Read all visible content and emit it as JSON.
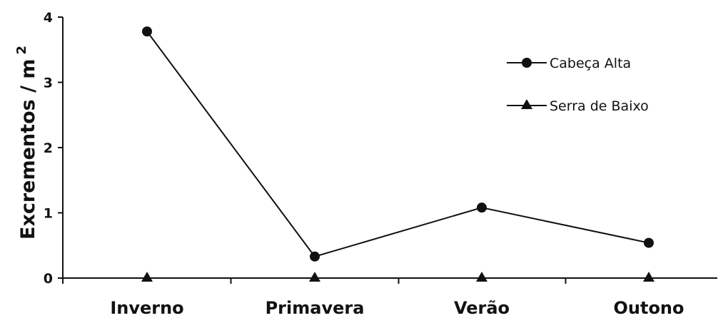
{
  "chart_data": {
    "type": "line",
    "categories": [
      "Inverno",
      "Primavera",
      "Verão",
      "Outono"
    ],
    "series": [
      {
        "name": "Cabeça Alta",
        "marker": "circle",
        "values": [
          3.78,
          0.33,
          1.08,
          0.54
        ]
      },
      {
        "name": "Serra de Baixo",
        "marker": "triangle",
        "values": [
          0,
          0,
          0,
          0
        ]
      }
    ],
    "ylabel": "Excrementos / m",
    "ylabel_superscript": "2",
    "xlabel": "",
    "ylim": [
      0,
      4
    ],
    "yticks": [
      "0",
      "1",
      "2",
      "3",
      "4"
    ],
    "grid": false,
    "legend_position": "top-right",
    "line_color": "#111111"
  }
}
